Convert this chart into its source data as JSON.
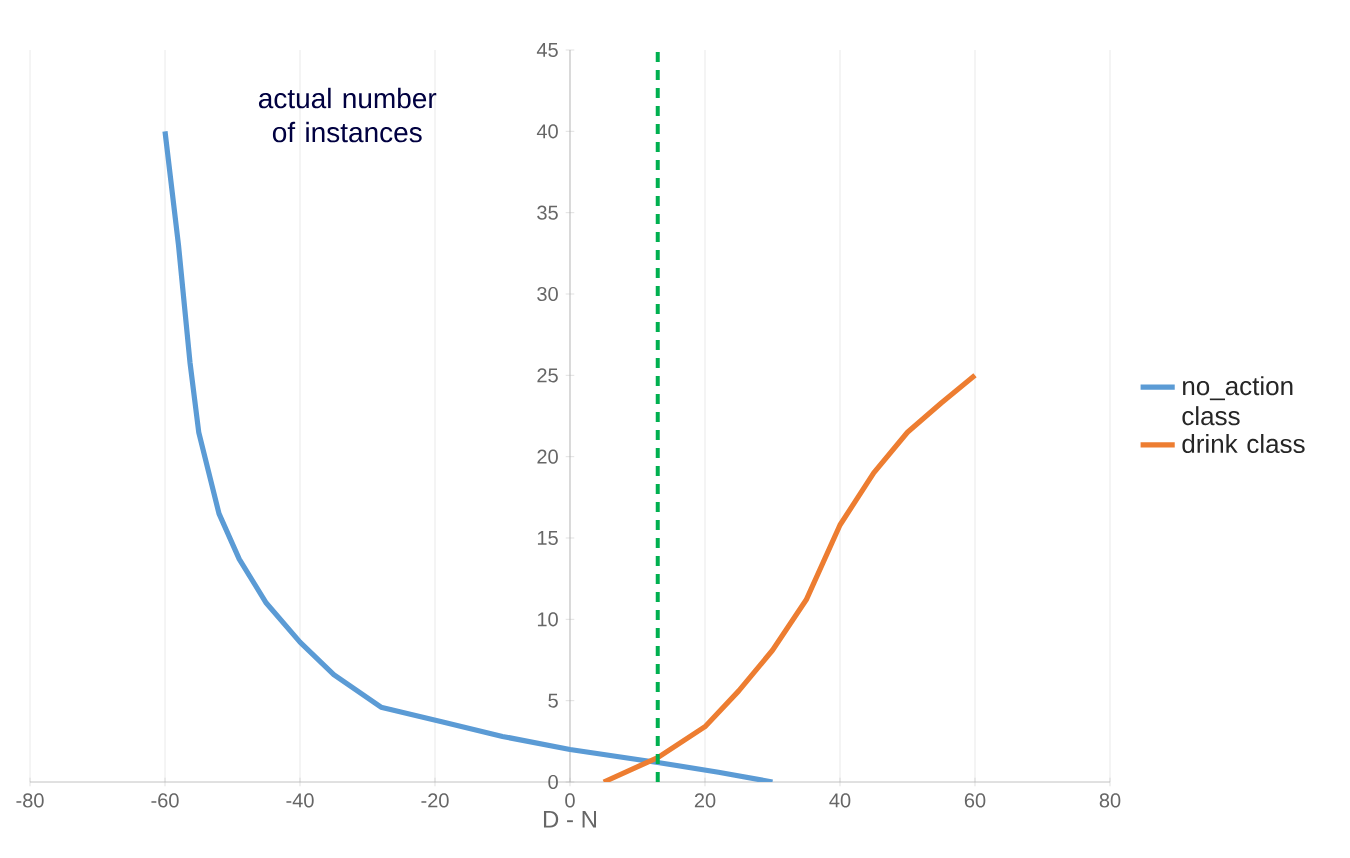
{
  "chart_data": {
    "type": "line",
    "xlabel": "D - N",
    "ylabel": "actual number of instances",
    "xlim": [
      -80,
      80
    ],
    "xticks": [
      -80,
      -60,
      -40,
      -20,
      0,
      20,
      40,
      60,
      80
    ],
    "ylim": [
      0,
      45
    ],
    "yticks": [
      0,
      5,
      10,
      15,
      20,
      25,
      30,
      35,
      40,
      45
    ],
    "grid": "x",
    "legend": "right",
    "marker": "none",
    "line_style": "solid",
    "series": [
      {
        "name": "no_action class",
        "color": "#5b9bd5",
        "x": [
          -60,
          -58,
          -56.3,
          -55,
          -52,
          -49,
          -45,
          -40,
          -35,
          -28,
          -19,
          -10,
          0,
          13,
          22,
          30
        ],
        "values": [
          40,
          33,
          25.8,
          21.5,
          16.5,
          13.7,
          11,
          8.6,
          6.6,
          4.6,
          3.7,
          2.8,
          2,
          1.2,
          0.6,
          0
        ]
      },
      {
        "name": "drink class",
        "color": "#ed7d31",
        "x": [
          5,
          13,
          20,
          25,
          30,
          35,
          40,
          45,
          50,
          55,
          60
        ],
        "values": [
          0,
          1.5,
          3.4,
          5.6,
          8.1,
          11.2,
          15.8,
          19,
          21.5,
          23.3,
          25
        ]
      }
    ],
    "ref_lines": [
      {
        "axis": "x",
        "value": 13,
        "color": "#00b050",
        "line_style": "dashed"
      }
    ]
  }
}
